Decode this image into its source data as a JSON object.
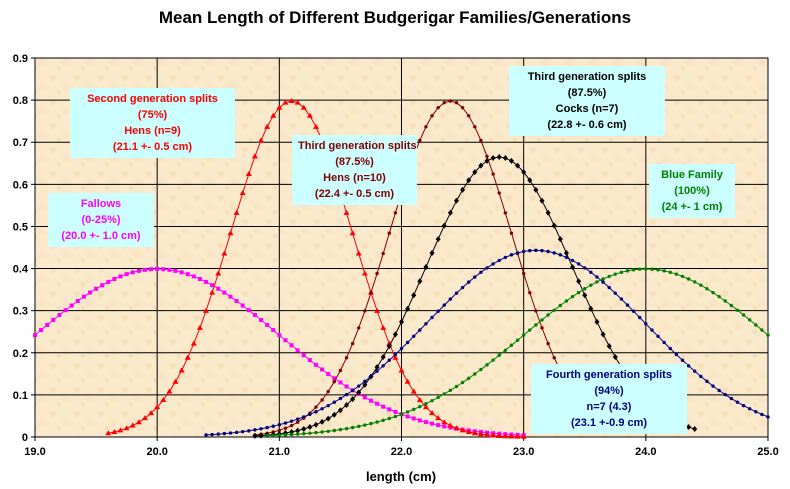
{
  "chart_data": {
    "type": "line",
    "title": "Mean Length of Different Budgerigar Families/Generations",
    "xlabel": "length (cm)",
    "ylabel": "",
    "xlim": [
      19.0,
      25.0
    ],
    "ylim": [
      0,
      0.9
    ],
    "x_ticks": [
      "19.0",
      "20.0",
      "21.0",
      "22.0",
      "23.0",
      "24.0",
      "25.0"
    ],
    "y_ticks": [
      "0",
      "0.1",
      "0.2",
      "0.3",
      "0.4",
      "0.5",
      "0.6",
      "0.7",
      "0.8",
      "0.9"
    ],
    "grid": true,
    "series": [
      {
        "color": "#ff00ff",
        "marker": "square",
        "mean": 20.0,
        "sd": 1.0,
        "xmin": 19.0,
        "xmax": 23.0
      },
      {
        "color": "#ff0000",
        "marker": "triangle",
        "mean": 21.1,
        "sd": 0.5,
        "xmin": 19.6,
        "xmax": 23.0
      },
      {
        "color": "#800000",
        "marker": "dot",
        "mean": 22.4,
        "sd": 0.5,
        "xmin": 20.8,
        "xmax": 23.3
      },
      {
        "color": "#000000",
        "marker": "diamond",
        "mean": 22.8,
        "sd": 0.6,
        "xmin": 20.8,
        "xmax": 24.4
      },
      {
        "color": "#000080",
        "marker": "dot",
        "mean": 23.1,
        "sd": 0.9,
        "xmin": 20.4,
        "xmax": 25.0
      },
      {
        "color": "#008000",
        "marker": "dot",
        "mean": 24.0,
        "sd": 1.0,
        "xmin": 20.9,
        "xmax": 25.0
      }
    ],
    "annotations": [
      {
        "lines": [
          "Fallows",
          "(0-25%)",
          "(20.0 +- 1.0 cm)"
        ],
        "color": "#ff00ff"
      },
      {
        "lines": [
          "Second generation splits",
          "(75%)",
          "Hens (n=9)",
          "(21.1 +- 0.5 cm)"
        ],
        "color": "#ff0000"
      },
      {
        "lines": [
          "Third generation splits",
          "(87.5%)",
          "Hens (n=10)",
          "(22.4 +- 0.5 cm)"
        ],
        "color": "#800000"
      },
      {
        "lines": [
          "Third generation splits",
          "(87.5%)",
          "Cocks (n=7)",
          "(22.8 +- 0.6 cm)"
        ],
        "color": "#000000"
      },
      {
        "lines": [
          "Blue Family",
          "(100%)",
          "(24 +- 1 cm)"
        ],
        "color": "#008000"
      },
      {
        "lines": [
          "Fourth generation splits",
          "(94%)",
          "n=7 (4.3)",
          "(23.1 +-0.9 cm)"
        ],
        "color": "#000080"
      }
    ]
  }
}
